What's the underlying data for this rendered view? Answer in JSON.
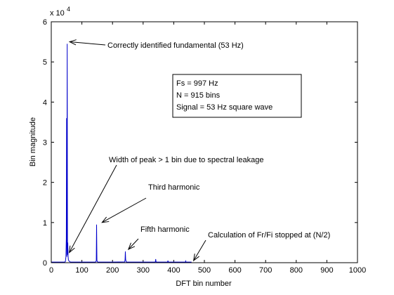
{
  "chart_data": {
    "type": "line",
    "title": "",
    "xlabel": "DFT bin number",
    "ylabel": "Bin magnitude",
    "xlim": [
      0,
      1000
    ],
    "ylim": [
      0,
      60000
    ],
    "x_ticks": [
      0,
      100,
      200,
      300,
      400,
      500,
      600,
      700,
      800,
      900,
      1000
    ],
    "y_ticks": [
      0,
      1,
      2,
      3,
      4,
      5,
      6
    ],
    "y_multiplier": {
      "base": "x 10",
      "exponent": "4"
    },
    "grid": false,
    "series": [
      {
        "color": "#0000cc",
        "x": [
          0,
          44,
          46,
          48,
          49,
          50,
          51,
          52,
          53,
          54,
          55,
          56,
          58,
          60,
          62,
          64,
          100,
          144,
          146,
          147,
          148,
          149,
          150,
          152,
          200,
          240,
          241,
          242,
          243,
          244,
          245,
          248,
          300,
          340,
          341,
          342,
          343,
          345,
          380,
          381,
          382,
          383,
          400,
          438,
          439,
          440,
          441,
          458
        ],
        "y": [
          150,
          150,
          300,
          1500,
          6000,
          36000,
          1500,
          54500,
          2000,
          5000,
          1500,
          700,
          400,
          250,
          200,
          150,
          150,
          150,
          300,
          600,
          9500,
          600,
          300,
          150,
          150,
          200,
          800,
          2800,
          800,
          400,
          200,
          150,
          150,
          150,
          900,
          300,
          150,
          150,
          150,
          500,
          200,
          150,
          150,
          150,
          400,
          150,
          150,
          150
        ]
      }
    ],
    "annotations": [
      {
        "text": "Correctly identified fundamental (53 Hz)",
        "point": [
          53,
          54500
        ]
      },
      {
        "text": "Width of peak > 1 bin due to spectral leakage",
        "point": [
          52,
          2000
        ]
      },
      {
        "text": "Third harmonic",
        "point": [
          159,
          9500
        ]
      },
      {
        "text": "Fifth harmonic",
        "point": [
          245,
          2800
        ]
      },
      {
        "text": "Calculation of Fr/Fi stopped at (N/2)",
        "point": [
          458,
          0
        ]
      }
    ],
    "info_box": [
      "Fs = 997 Hz",
      "N = 915 bins",
      "Signal = 53 Hz square wave"
    ]
  }
}
